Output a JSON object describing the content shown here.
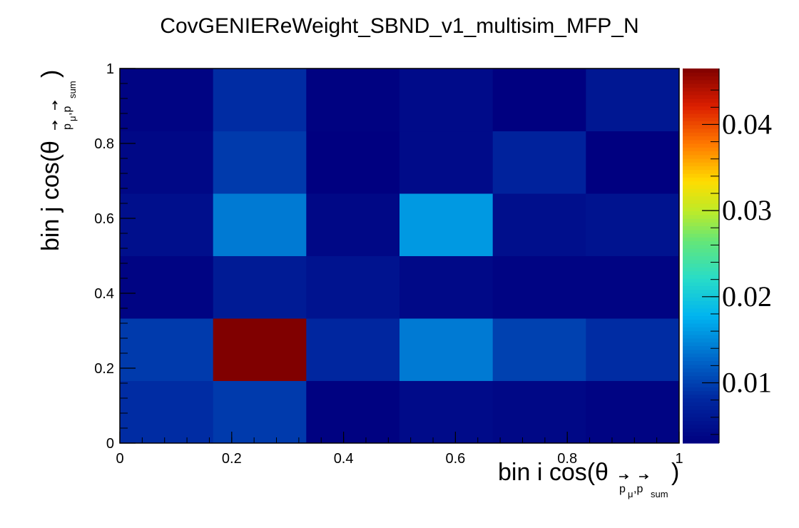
{
  "chart_data": {
    "type": "heatmap",
    "title": "CovGENIEReWeight_SBND_v1_multisim_MFP_N",
    "xlabel": {
      "main": "bin i cos(θ",
      "sub1": "p",
      "sub2": "μ",
      "sub3": ",p",
      "sub4": "sum",
      "close": ")"
    },
    "ylabel": {
      "main": "bin j cos(θ",
      "sub1": "p",
      "sub2": "μ",
      "sub3": ",p",
      "sub4": "sum",
      "close": ")"
    },
    "xlim": [
      0,
      1
    ],
    "ylim": [
      0,
      1
    ],
    "x_edges": [
      0,
      0.1667,
      0.3333,
      0.5,
      0.6667,
      0.8333,
      1
    ],
    "y_edges": [
      0,
      0.1667,
      0.3333,
      0.5,
      0.6667,
      0.8333,
      1
    ],
    "x_ticks": [
      "0",
      "0.2",
      "0.4",
      "0.6",
      "0.8",
      "1"
    ],
    "y_ticks": [
      "0",
      "0.2",
      "0.4",
      "0.6",
      "0.8",
      "1"
    ],
    "z_range": [
      0.003,
      0.0465
    ],
    "z_ticks": [
      "0.01",
      "0.02",
      "0.03",
      "0.04"
    ],
    "z_tick_values": [
      0.01,
      0.02,
      0.03,
      0.04
    ],
    "values": [
      [
        0.0085,
        0.0095,
        0.0032,
        0.0045,
        0.004,
        0.0035
      ],
      [
        0.0095,
        0.0465,
        0.008,
        0.014,
        0.01,
        0.0085
      ],
      [
        0.0035,
        0.0065,
        0.0055,
        0.0042,
        0.0035,
        0.0035
      ],
      [
        0.005,
        0.014,
        0.004,
        0.016,
        0.005,
        0.0055
      ],
      [
        0.004,
        0.0095,
        0.003,
        0.0045,
        0.0075,
        0.003
      ],
      [
        0.0035,
        0.0085,
        0.0032,
        0.0045,
        0.003,
        0.006
      ]
    ]
  }
}
